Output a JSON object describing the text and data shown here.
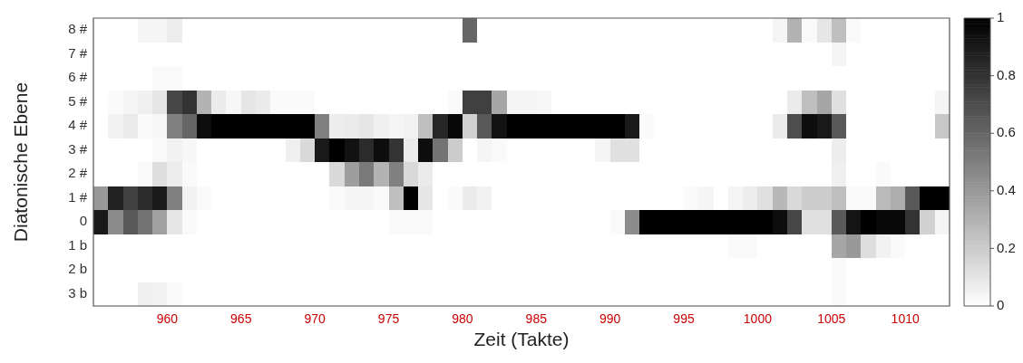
{
  "chart_data": {
    "type": "heatmap",
    "xlabel": "Zeit (Takte)",
    "ylabel": "Diatonische Ebene",
    "x": [
      955.5,
      956.5,
      957.5,
      958.5,
      959.5,
      960.5,
      961.5,
      962.5,
      963.5,
      964.5,
      965.5,
      966.5,
      967.5,
      968.5,
      969.5,
      970.5,
      971.5,
      972.5,
      973.5,
      974.5,
      975.5,
      976.5,
      977.5,
      978.5,
      979.5,
      980.5,
      981.5,
      982.5,
      983.5,
      984.5,
      985.5,
      986.5,
      987.5,
      988.5,
      989.5,
      990.5,
      991.5,
      992.5,
      993.5,
      994.5,
      995.5,
      996.5,
      997.5,
      998.5,
      999.5,
      1000.5,
      1001.5,
      1002.5,
      1003.5,
      1004.5,
      1005.5,
      1006.5,
      1007.5,
      1008.5,
      1009.5,
      1010.5,
      1011.5,
      1012.5
    ],
    "xlim": [
      955,
      1013
    ],
    "xticks": [
      960,
      965,
      970,
      975,
      980,
      985,
      990,
      995,
      1000,
      1005,
      1010
    ],
    "y_categories": [
      "8 #",
      "7 #",
      "6 #",
      "5 #",
      "4 #",
      "3 #",
      "2 #",
      "1 #",
      "0",
      "1 b",
      "2 b",
      "3 b"
    ],
    "cells": [
      [
        0,
        0,
        0,
        0.04,
        0.04,
        0.07,
        0,
        0,
        0,
        0,
        0,
        0,
        0,
        0,
        0,
        0,
        0,
        0,
        0,
        0,
        0,
        0,
        0,
        0,
        0,
        0.6,
        0,
        0,
        0,
        0,
        0,
        0,
        0,
        0,
        0,
        0,
        0,
        0,
        0,
        0,
        0,
        0,
        0,
        0,
        0,
        0,
        0.04,
        0.3,
        0.02,
        0.1,
        0.25,
        0.02,
        0,
        0,
        0,
        0,
        0,
        0
      ],
      [
        0,
        0,
        0,
        0,
        0,
        0,
        0,
        0,
        0,
        0,
        0,
        0,
        0,
        0,
        0,
        0,
        0,
        0,
        0,
        0,
        0,
        0,
        0,
        0,
        0,
        0,
        0,
        0,
        0,
        0,
        0,
        0,
        0,
        0,
        0,
        0,
        0,
        0,
        0,
        0,
        0,
        0,
        0,
        0,
        0,
        0,
        0,
        0,
        0,
        0,
        0.04,
        0,
        0,
        0,
        0,
        0,
        0,
        0
      ],
      [
        0,
        0,
        0,
        0,
        0.02,
        0.02,
        0,
        0,
        0,
        0,
        0,
        0,
        0,
        0,
        0,
        0,
        0,
        0,
        0,
        0,
        0,
        0,
        0,
        0,
        0,
        0,
        0,
        0,
        0,
        0,
        0,
        0,
        0,
        0,
        0,
        0,
        0,
        0,
        0,
        0,
        0,
        0,
        0,
        0,
        0,
        0,
        0,
        0,
        0,
        0,
        0,
        0,
        0,
        0,
        0,
        0,
        0,
        0
      ],
      [
        0,
        0.02,
        0.04,
        0.06,
        0.1,
        0.72,
        0.8,
        0.3,
        0.08,
        0.03,
        0.1,
        0.08,
        0.02,
        0.02,
        0.02,
        0,
        0,
        0,
        0,
        0,
        0,
        0,
        0,
        0,
        0.02,
        0.75,
        0.75,
        0.35,
        0.04,
        0.04,
        0.03,
        0,
        0,
        0,
        0,
        0,
        0,
        0,
        0,
        0,
        0,
        0,
        0,
        0,
        0,
        0,
        0,
        0.08,
        0.25,
        0.35,
        0.12,
        0,
        0,
        0,
        0,
        0,
        0,
        0.04
      ],
      [
        0,
        0.05,
        0.08,
        0.02,
        0.03,
        0.5,
        0.6,
        0.95,
        1,
        1,
        1,
        1,
        1,
        1,
        1,
        0.5,
        0.07,
        0.08,
        0.1,
        0.06,
        0.04,
        0.05,
        0.25,
        0.85,
        0.97,
        0.18,
        0.65,
        0.93,
        1,
        1,
        1,
        1,
        1,
        1,
        1,
        1,
        0.9,
        0.02,
        0,
        0,
        0,
        0,
        0,
        0,
        0,
        0,
        0.08,
        0.7,
        0.95,
        0.9,
        0.65,
        0,
        0,
        0,
        0,
        0,
        0,
        0.22
      ],
      [
        0,
        0,
        0,
        0,
        0.02,
        0.05,
        0.03,
        0,
        0,
        0,
        0,
        0,
        0,
        0.06,
        0.15,
        0.9,
        1,
        0.93,
        0.83,
        0.95,
        0.8,
        0.08,
        0.95,
        0.55,
        0.2,
        0,
        0.04,
        0.02,
        0,
        0,
        0,
        0,
        0,
        0,
        0.04,
        0.12,
        0.12,
        0,
        0,
        0,
        0,
        0,
        0,
        0,
        0,
        0,
        0,
        0,
        0,
        0,
        0.07,
        0,
        0,
        0,
        0,
        0,
        0,
        0
      ],
      [
        0,
        0,
        0,
        0.02,
        0.13,
        0.07,
        0.02,
        0,
        0,
        0,
        0,
        0,
        0,
        0,
        0,
        0,
        0.15,
        0.38,
        0.52,
        0.3,
        0.5,
        0.15,
        0.08,
        0,
        0,
        0,
        0,
        0,
        0,
        0,
        0,
        0,
        0,
        0,
        0,
        0,
        0,
        0,
        0,
        0,
        0,
        0,
        0,
        0,
        0,
        0,
        0,
        0,
        0,
        0,
        0.06,
        0,
        0,
        0.02,
        0,
        0,
        0,
        0
      ],
      [
        0.4,
        0.87,
        0.75,
        0.83,
        0.9,
        0.5,
        0.05,
        0.02,
        0,
        0,
        0,
        0,
        0,
        0,
        0,
        0,
        0.02,
        0.04,
        0.04,
        0.02,
        0.25,
        1,
        0.1,
        0,
        0.02,
        0.08,
        0.05,
        0,
        0,
        0,
        0,
        0,
        0,
        0,
        0,
        0,
        0,
        0,
        0,
        0,
        0.02,
        0.04,
        0,
        0.04,
        0.07,
        0.12,
        0.28,
        0.15,
        0.2,
        0.2,
        0.25,
        0.02,
        0.02,
        0.27,
        0.32,
        0.65,
        1,
        1
      ],
      [
        0.9,
        0.45,
        0.65,
        0.55,
        0.37,
        0.1,
        0.02,
        0,
        0,
        0,
        0,
        0,
        0,
        0,
        0,
        0,
        0,
        0,
        0,
        0,
        0.02,
        0.02,
        0.02,
        0,
        0,
        0,
        0,
        0,
        0,
        0,
        0,
        0,
        0,
        0,
        0,
        0.02,
        0.45,
        1,
        1,
        1,
        1,
        1,
        1,
        1,
        1,
        1,
        0.95,
        0.72,
        0.12,
        0.12,
        0.65,
        0.92,
        1,
        0.97,
        0.97,
        0.8,
        0.18,
        0.04
      ],
      [
        0,
        0,
        0,
        0,
        0,
        0,
        0,
        0,
        0,
        0,
        0,
        0,
        0,
        0,
        0,
        0,
        0,
        0,
        0,
        0,
        0,
        0,
        0,
        0,
        0,
        0,
        0,
        0,
        0,
        0,
        0,
        0,
        0,
        0,
        0,
        0,
        0,
        0,
        0,
        0,
        0,
        0,
        0,
        0.02,
        0.02,
        0,
        0,
        0,
        0,
        0,
        0.35,
        0.4,
        0.13,
        0.05,
        0.02,
        0,
        0,
        0
      ],
      [
        0,
        0,
        0,
        0,
        0,
        0,
        0,
        0,
        0,
        0,
        0,
        0,
        0,
        0,
        0,
        0,
        0,
        0,
        0,
        0,
        0,
        0,
        0,
        0,
        0,
        0,
        0,
        0,
        0,
        0,
        0,
        0,
        0,
        0,
        0,
        0,
        0,
        0,
        0,
        0,
        0,
        0,
        0,
        0,
        0,
        0,
        0,
        0,
        0,
        0,
        0.02,
        0,
        0,
        0,
        0,
        0,
        0,
        0
      ],
      [
        0,
        0,
        0,
        0.06,
        0.05,
        0.02,
        0,
        0,
        0,
        0,
        0,
        0,
        0,
        0,
        0,
        0,
        0,
        0,
        0,
        0,
        0,
        0,
        0,
        0,
        0,
        0,
        0,
        0,
        0,
        0,
        0,
        0,
        0,
        0,
        0,
        0,
        0,
        0,
        0,
        0,
        0,
        0,
        0,
        0,
        0,
        0,
        0,
        0,
        0,
        0,
        0.02,
        0,
        0,
        0,
        0,
        0,
        0,
        0
      ]
    ],
    "clim": [
      0,
      1
    ],
    "cticks": [
      0,
      0.2,
      0.4,
      0.6,
      0.8,
      1
    ],
    "grid": false
  }
}
